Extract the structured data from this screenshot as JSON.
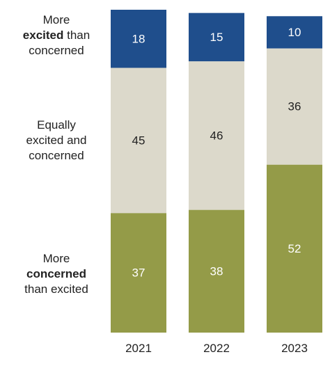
{
  "chart_data": {
    "type": "bar",
    "stacked": true,
    "categories": [
      "2021",
      "2022",
      "2023"
    ],
    "series": [
      {
        "name": "More excited than concerned",
        "values": [
          18,
          15,
          10
        ],
        "color": "#1f4e8c",
        "label_color": "#ffffff"
      },
      {
        "name": "Equally excited and concerned",
        "values": [
          45,
          46,
          36
        ],
        "color": "#dcd9cb",
        "label_color": "#222222"
      },
      {
        "name": "More concerned than excited",
        "values": [
          37,
          38,
          52
        ],
        "color": "#949b48",
        "label_color": "#ffffff"
      }
    ],
    "ylim": [
      0,
      100
    ],
    "legend_placement": "left"
  },
  "legend": {
    "excited": {
      "pre": "More",
      "bold": "excited",
      "post": "than",
      "line3": "concerned"
    },
    "equal": {
      "line1": "Equally",
      "line2": "excited and",
      "line3": "concerned"
    },
    "concerned": {
      "pre": "More",
      "bold": "concerned",
      "post": "than excited"
    }
  }
}
